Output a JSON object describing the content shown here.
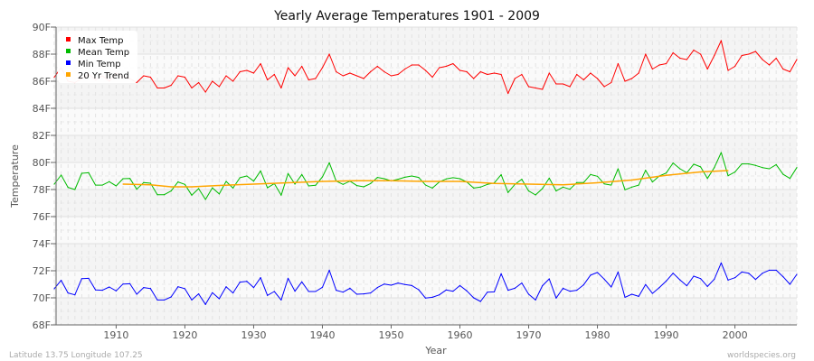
{
  "chart_data": {
    "type": "line",
    "title": "Yearly Average Temperatures 1901 - 2009",
    "xlabel": "Year",
    "ylabel": "Temperature",
    "xlim": [
      1901,
      2009
    ],
    "ylim": [
      68,
      90
    ],
    "x_ticks": [
      1910,
      1920,
      1930,
      1940,
      1950,
      1960,
      1970,
      1980,
      1990,
      2000
    ],
    "y_ticks": [
      "68F",
      "70F",
      "72F",
      "74F",
      "76F",
      "78F",
      "80F",
      "82F",
      "84F",
      "86F",
      "88F",
      "90F"
    ],
    "grid": true,
    "legend_position": "top-left",
    "start_year": 1901,
    "series": [
      {
        "name": "Max Temp",
        "color": "#ff0000",
        "values": [
          86.3,
          87.0,
          86.0,
          85.9,
          86.2,
          86.5,
          86.1,
          86.4,
          86.0,
          86.6,
          86.3,
          86.2,
          85.9,
          86.4,
          86.3,
          85.5,
          85.5,
          85.7,
          86.4,
          86.3,
          85.5,
          85.9,
          85.2,
          86.0,
          85.6,
          86.4,
          86.0,
          86.7,
          86.8,
          86.6,
          87.3,
          86.1,
          86.5,
          85.5,
          87.0,
          86.4,
          87.1,
          86.1,
          86.2,
          87.0,
          88.0,
          86.7,
          86.4,
          86.6,
          86.4,
          86.2,
          86.7,
          87.1,
          86.7,
          86.4,
          86.5,
          86.9,
          87.2,
          87.2,
          86.8,
          86.3,
          87.0,
          87.1,
          87.3,
          86.8,
          86.7,
          86.2,
          86.7,
          86.5,
          86.6,
          86.5,
          85.1,
          86.2,
          86.5,
          85.6,
          85.5,
          85.4,
          86.6,
          85.8,
          85.8,
          85.6,
          86.5,
          86.1,
          86.6,
          86.2,
          85.6,
          85.9,
          87.3,
          86.0,
          86.2,
          86.6,
          88.0,
          86.9,
          87.2,
          87.3,
          88.1,
          87.7,
          87.6,
          88.3,
          88.0,
          86.9,
          87.9,
          89.0,
          86.8,
          87.1,
          87.9,
          88.0,
          88.2,
          87.6,
          87.2,
          87.7,
          86.9,
          86.7,
          87.6
        ]
      },
      {
        "name": "Mean Temp",
        "color": "#00bb00",
        "values": [
          78.4,
          79.07,
          78.16,
          78.0,
          79.2,
          79.24,
          78.33,
          78.33,
          78.58,
          78.27,
          78.8,
          78.82,
          78.02,
          78.51,
          78.47,
          77.62,
          77.62,
          77.89,
          78.56,
          78.38,
          77.58,
          78.07,
          77.27,
          78.13,
          77.67,
          78.6,
          78.11,
          78.87,
          79.0,
          78.62,
          79.38,
          78.13,
          78.44,
          77.58,
          79.18,
          78.4,
          79.11,
          78.27,
          78.31,
          78.93,
          79.98,
          78.62,
          78.38,
          78.62,
          78.29,
          78.2,
          78.44,
          78.89,
          78.8,
          78.64,
          78.76,
          78.91,
          79.0,
          78.89,
          78.33,
          78.11,
          78.56,
          78.78,
          78.87,
          78.8,
          78.56,
          78.11,
          78.18,
          78.38,
          78.49,
          79.09,
          77.78,
          78.38,
          78.76,
          77.89,
          77.6,
          78.07,
          78.84,
          77.89,
          78.18,
          78.02,
          78.51,
          78.51,
          79.11,
          78.98,
          78.42,
          78.33,
          79.53,
          77.98,
          78.18,
          78.33,
          79.42,
          78.56,
          79.0,
          79.22,
          79.96,
          79.53,
          79.24,
          79.87,
          79.67,
          78.82,
          79.62,
          80.73,
          79.02,
          79.29,
          79.89,
          79.89,
          79.78,
          79.62,
          79.53,
          79.84,
          79.13,
          78.82,
          79.62
        ]
      },
      {
        "name": "Min Temp",
        "color": "#0000ff",
        "values": [
          70.67,
          71.29,
          70.36,
          70.22,
          71.42,
          71.44,
          70.58,
          70.56,
          70.8,
          70.51,
          71.02,
          71.04,
          70.27,
          70.76,
          70.69,
          69.84,
          69.84,
          70.07,
          70.82,
          70.67,
          69.84,
          70.29,
          69.51,
          70.38,
          69.93,
          70.82,
          70.36,
          71.16,
          71.22,
          70.76,
          71.49,
          70.18,
          70.47,
          69.84,
          71.44,
          70.49,
          71.18,
          70.47,
          70.47,
          70.78,
          72.04,
          70.56,
          70.42,
          70.71,
          70.27,
          70.29,
          70.36,
          70.76,
          71.02,
          70.93,
          71.09,
          70.98,
          70.91,
          70.6,
          69.98,
          70.04,
          70.22,
          70.58,
          70.49,
          70.91,
          70.51,
          70.0,
          69.73,
          70.42,
          70.44,
          71.78,
          70.56,
          70.71,
          71.09,
          70.27,
          69.84,
          70.89,
          71.4,
          69.98,
          70.71,
          70.49,
          70.56,
          70.96,
          71.67,
          71.87,
          71.38,
          70.8,
          71.91,
          70.04,
          70.27,
          70.11,
          70.98,
          70.33,
          70.76,
          71.24,
          71.82,
          71.33,
          70.89,
          71.6,
          71.42,
          70.84,
          71.38,
          72.58,
          71.31,
          71.49,
          71.91,
          71.82,
          71.36,
          71.82,
          72.04,
          72.04,
          71.56,
          71.0,
          71.73
        ]
      },
      {
        "name": "20 Yr Trend",
        "color": "#ffa500",
        "x": [
          1911,
          1915,
          1918,
          1921,
          1925,
          1930,
          1935,
          1940,
          1945,
          1950,
          1955,
          1960,
          1965,
          1970,
          1975,
          1980,
          1985,
          1990,
          1995,
          1999
        ],
        "values": [
          78.4,
          78.35,
          78.2,
          78.2,
          78.3,
          78.4,
          78.5,
          78.6,
          78.65,
          78.65,
          78.6,
          78.6,
          78.45,
          78.4,
          78.35,
          78.5,
          78.7,
          79.05,
          79.3,
          79.4
        ]
      }
    ]
  },
  "footer": {
    "left": "Latitude 13.75 Longitude 107.25",
    "right": "worldspecies.org"
  }
}
